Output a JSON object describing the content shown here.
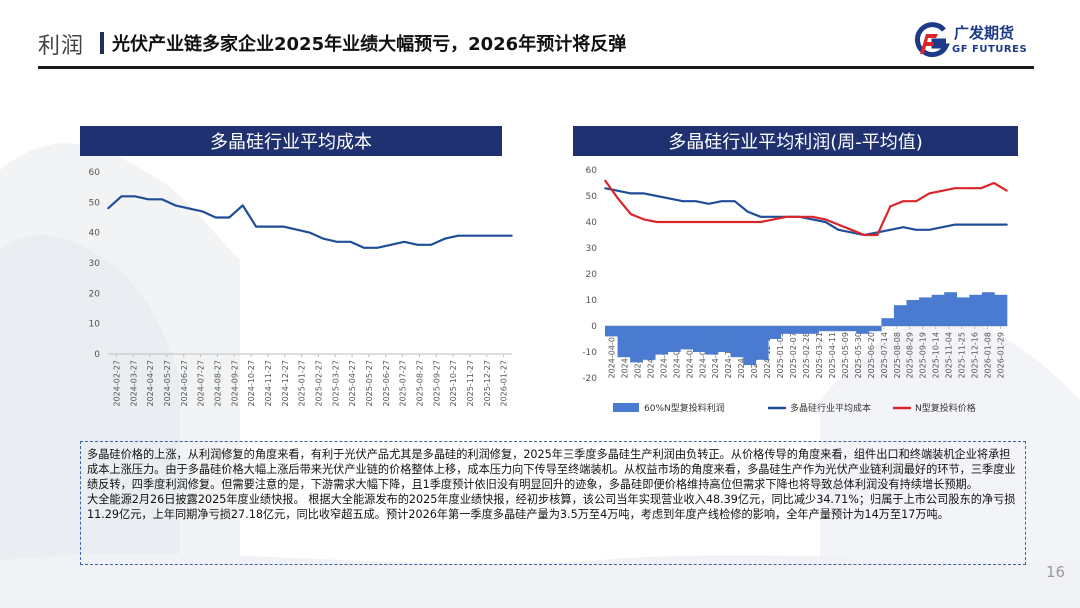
{
  "header": {
    "section": "利润",
    "title": "光伏产业链多家企业2025年业绩大幅预亏，2026年预计将反弹"
  },
  "logo": {
    "cn": "广发期货",
    "en": "GF FUTURES"
  },
  "colors": {
    "navy": "#1f3170",
    "blue_line": "#1f4e96",
    "red_line": "#d9262a",
    "bar_fill": "#4a7bd0"
  },
  "page_number": "16",
  "chart_data": [
    {
      "type": "line",
      "title": "多晶硅行业平均成本",
      "ylim": [
        0,
        60
      ],
      "y_ticks": [
        "0",
        "10",
        "20",
        "30",
        "40",
        "50",
        "60"
      ],
      "x_ticks": [
        "2024-02-27",
        "2024-03-27",
        "2024-04-27",
        "2024-05-27",
        "2024-06-27",
        "2024-07-27",
        "2024-08-27",
        "2024-09-27",
        "2024-10-27",
        "2024-11-27",
        "2024-12-27",
        "2025-01-27",
        "2025-02-27",
        "2025-03-27",
        "2025-04-27",
        "2025-05-27",
        "2025-06-27",
        "2025-07-27",
        "2025-08-27",
        "2025-09-27",
        "2025-10-27",
        "2025-11-27",
        "2025-12-27",
        "2026-01-27"
      ],
      "series": [
        {
          "values": [
            48,
            52,
            52,
            51,
            51,
            49,
            48,
            47,
            45,
            45,
            49,
            42,
            42,
            42,
            41,
            40,
            38,
            37,
            37,
            35,
            35,
            36,
            37,
            36,
            36,
            38,
            39,
            39,
            39,
            39,
            39
          ]
        }
      ]
    },
    {
      "type": "line",
      "title": "多晶硅行业平均利润(周-平均值)",
      "ylim": [
        -20,
        60
      ],
      "y_ticks": [
        "-20",
        "-10",
        "0",
        "10",
        "20",
        "30",
        "40",
        "50",
        "60"
      ],
      "x_ticks": [
        "2024-04-05",
        "2024-04-26",
        "2024-05-17",
        "2024-06-07",
        "2024-06-28",
        "2024-07-19",
        "2024-08-09",
        "2024-08-30",
        "2024-09-20",
        "2024-10-11",
        "2024-11-01",
        "2024-11-22",
        "2024-12-13",
        "2025-01-03",
        "2025-02-07",
        "2025-02-28",
        "2025-03-21",
        "2025-04-11",
        "2025-05-09",
        "2025-05-30",
        "2025-06-20",
        "2025-07-14",
        "2025-08-08",
        "2025-08-29",
        "2025-09-19",
        "2025-10-14",
        "2025-11-04",
        "2025-11-25",
        "2025-12-16",
        "2026-01-08",
        "2026-01-29"
      ],
      "legend": [
        "60%N型复投料利润",
        "多晶硅行业平均成本",
        "N型复投料价格"
      ],
      "series": [
        {
          "name": "60%N型复投料利润",
          "type": "bar",
          "values": [
            -4,
            -12,
            -14,
            -13,
            -11,
            -10,
            -9,
            -10,
            -11,
            -10,
            -12,
            -15,
            -13,
            -5,
            -3,
            -3,
            -3,
            -2,
            -2,
            -2,
            -3,
            -2,
            3,
            8,
            10,
            11,
            12,
            13,
            11,
            12,
            13,
            12
          ]
        },
        {
          "name": "多晶硅行业平均成本",
          "type": "line",
          "values": [
            53,
            52,
            51,
            51,
            50,
            49,
            48,
            48,
            47,
            48,
            48,
            44,
            42,
            42,
            42,
            42,
            41,
            40,
            37,
            36,
            35,
            36,
            37,
            38,
            37,
            37,
            38,
            39,
            39,
            39,
            39,
            39
          ]
        },
        {
          "name": "N型复投料价格",
          "type": "line",
          "values": [
            56,
            49,
            43,
            41,
            40,
            40,
            40,
            40,
            40,
            40,
            40,
            40,
            40,
            41,
            42,
            42,
            42,
            41,
            39,
            37,
            35,
            35,
            46,
            48,
            48,
            51,
            52,
            53,
            53,
            53,
            55,
            52
          ]
        }
      ]
    }
  ],
  "notes": [
    "多晶硅价格的上涨，从利润修复的角度来看，有利于光伏产品尤其是多晶硅的利润修复，2025年三季度多晶硅生产利润由负转正。从价格传导的角度来看，组件出口和终端装机企业将承担成本上涨压力。由于多晶硅价格大幅上涨后带来光伏产业链的价格整体上移，成本压力向下传导至终端装机。从权益市场的角度来看，多晶硅生产作为光伏产业链利润最好的环节，三季度业绩反转，四季度利润修复。但需要注意的是，下游需求大幅下降，且1季度预计依旧没有明显回升的迹象，多晶硅即便价格维持高位但需求下降也将导致总体利润没有持续增长预期。",
    "大全能源2月26日披露2025年度业绩快报。 根据大全能源发布的2025年度业绩快报，经初步核算，该公司当年实现营业收入48.39亿元，同比减少34.71%；归属于上市公司股东的净亏损11.29亿元，上年同期净亏损27.18亿元，同比收窄超五成。预计2026年第一季度多晶硅产量为3.5万至4万吨，考虑到年度产线检修的影响，全年产量预计为14万至17万吨。"
  ]
}
